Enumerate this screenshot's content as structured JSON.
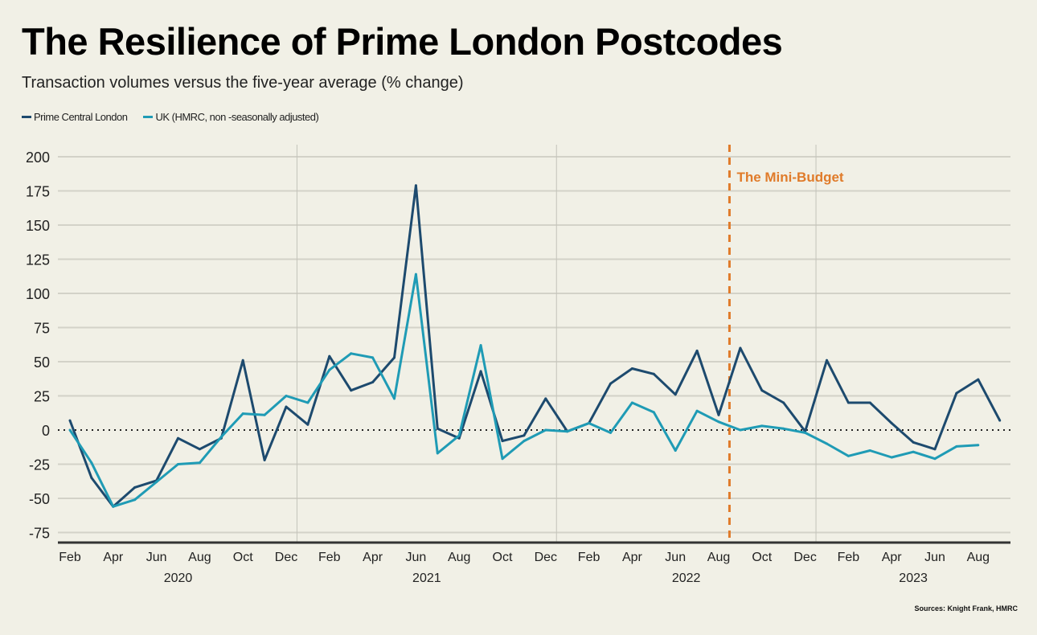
{
  "chart_data": {
    "type": "line",
    "title": "The Resilience of Prime London Postcodes",
    "subtitle": "Transaction volumes versus the five-year average (% change)",
    "source": "Sources: Knight Frank, HMRC",
    "ylim": [
      -82,
      210
    ],
    "yticks": [
      200,
      175,
      150,
      125,
      100,
      75,
      50,
      25,
      0,
      -25,
      -50,
      -75
    ],
    "grid": true,
    "legend_position": "top-left",
    "x_tick_labels": [
      "Feb",
      "Apr",
      "Jun",
      "Aug",
      "Oct",
      "Dec",
      "Feb",
      "Apr",
      "Jun",
      "Aug",
      "Oct",
      "Dec",
      "Feb",
      "Apr",
      "Jun",
      "Aug",
      "Oct",
      "Dec",
      "Feb",
      "Apr",
      "Jun",
      "Aug"
    ],
    "year_labels": [
      {
        "label": "2020",
        "center_index": 5
      },
      {
        "label": "2021",
        "center_index": 16.5
      },
      {
        "label": "2022",
        "center_index": 28.5
      },
      {
        "label": "2023",
        "center_index": 39
      }
    ],
    "x_start": "Feb 2020",
    "x_end": "Sep 2023",
    "series": [
      {
        "name": "Prime Central London",
        "color": "#1d4a6e",
        "values": [
          7,
          -35,
          -56,
          -42,
          -37,
          -6,
          -14,
          -6,
          51,
          -22,
          17,
          4,
          54,
          29,
          35,
          53,
          179,
          1,
          -6,
          43,
          -8,
          -4,
          23,
          -1,
          5,
          34,
          45,
          41,
          26,
          58,
          11,
          60,
          29,
          20,
          -1,
          51,
          20,
          20,
          5,
          -9,
          -14,
          27,
          37,
          7
        ]
      },
      {
        "name": "UK (HMRC, non -seasonally adjusted)",
        "color": "#1f9bb5",
        "values": [
          0,
          -24,
          -56,
          -51,
          -38,
          -25,
          -24,
          -5,
          12,
          11,
          25,
          20,
          44,
          56,
          53,
          23,
          114,
          -17,
          -4,
          62,
          -21,
          -8,
          0,
          -1,
          5,
          -2,
          20,
          13,
          -15,
          14,
          6,
          0,
          3,
          1,
          -2,
          -10,
          -19,
          -15,
          -20,
          -16,
          -21,
          -12,
          -11
        ]
      }
    ],
    "annotation": {
      "label": "The Mini-Budget",
      "index": 30.5,
      "color": "#e07b2a"
    }
  }
}
